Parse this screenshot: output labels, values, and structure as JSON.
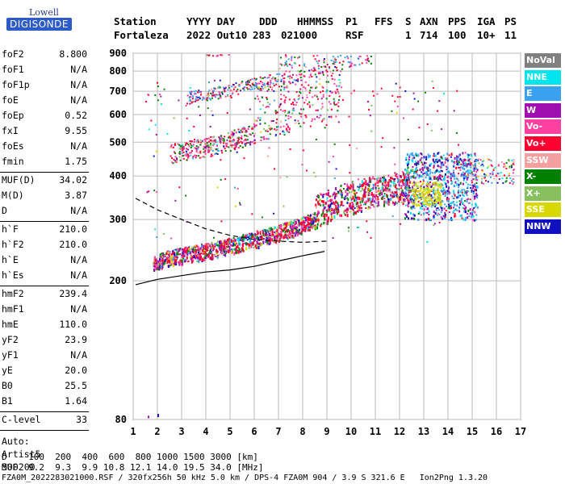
{
  "logo": {
    "top": "Lowell",
    "main": "DIGISONDE"
  },
  "header": {
    "labels": [
      "Station",
      "YYYY DAY",
      "DDD",
      "HHMMSS",
      "P1",
      "FFS",
      "S",
      "AXN",
      "PPS",
      "IGA",
      "PS"
    ],
    "values": [
      "Fortaleza",
      "2022 Out10",
      "283",
      "021000",
      "RSF",
      "1",
      "714",
      "100",
      "10+",
      "11"
    ]
  },
  "params": {
    "g1": [
      {
        "name": "foF2",
        "value": "8.800"
      },
      {
        "name": "foF1",
        "value": "N/A"
      },
      {
        "name": "foF1p",
        "value": "N/A"
      },
      {
        "name": "foE",
        "value": "N/A"
      },
      {
        "name": "foEp",
        "value": "0.52"
      },
      {
        "name": "fxI",
        "value": "9.55"
      },
      {
        "name": "foEs",
        "value": "N/A"
      },
      {
        "name": "fmin",
        "value": "1.75"
      }
    ],
    "g2": [
      {
        "name": "MUF(D)",
        "value": "34.02"
      },
      {
        "name": "M(D)",
        "value": "3.87"
      },
      {
        "name": "D",
        "value": "N/A"
      }
    ],
    "g3": [
      {
        "name": "h`F",
        "value": "210.0"
      },
      {
        "name": "h`F2",
        "value": "210.0"
      },
      {
        "name": "h`E",
        "value": "N/A"
      },
      {
        "name": "h`Es",
        "value": "N/A"
      }
    ],
    "g4": [
      {
        "name": "hmF2",
        "value": "239.4"
      },
      {
        "name": "hmF1",
        "value": "N/A"
      },
      {
        "name": "hmE",
        "value": "110.0"
      },
      {
        "name": "yF2",
        "value": "23.9"
      },
      {
        "name": "yF1",
        "value": "N/A"
      },
      {
        "name": "yE",
        "value": "20.0"
      },
      {
        "name": "B0",
        "value": "25.5"
      },
      {
        "name": "B1",
        "value": "1.64"
      }
    ],
    "clevel": {
      "name": "C-level",
      "value": "33"
    },
    "auto": [
      "Auto:",
      "Artist5",
      "500200"
    ]
  },
  "legend": [
    {
      "label": "NoVal",
      "color": "#808080"
    },
    {
      "label": "NNE",
      "color": "#00e5ee"
    },
    {
      "label": "E",
      "color": "#3aa0f0"
    },
    {
      "label": "W",
      "color": "#a010b0"
    },
    {
      "label": "Vo-",
      "color": "#ff40a0"
    },
    {
      "label": "Vo+",
      "color": "#ff0030"
    },
    {
      "label": "SSW",
      "color": "#f5a0a0"
    },
    {
      "label": "X-",
      "color": "#008000"
    },
    {
      "label": "X+",
      "color": "#88c060"
    },
    {
      "label": "SSE",
      "color": "#d8d800"
    },
    {
      "label": "NNW",
      "color": "#1010c0"
    }
  ],
  "bottom": {
    "line1": "D    100  200  400  600  800 1000 1500 3000 [km]",
    "line2": "MUF  9.2  9.3  9.9 10.8 12.1 14.0 19.5 34.0 [MHz]",
    "line3": "FZA0M_2022283021000.RSF / 320fx256h 50 kHz 5.0 km / DPS-4 FZA0M 904 / 3.9 S 321.6 E   Ion2Png 1.3.20"
  },
  "chart_data": {
    "type": "scatter",
    "xlim": [
      1,
      17
    ],
    "ylim": [
      80,
      900
    ],
    "x_ticks": [
      1,
      2,
      3,
      4,
      5,
      6,
      7,
      8,
      9,
      10,
      11,
      12,
      13,
      14,
      15,
      16,
      17
    ],
    "y_ticks": [
      80,
      200,
      300,
      400,
      500,
      600,
      700,
      800,
      900
    ],
    "y_scale": "log",
    "grid": true,
    "traces": [
      {
        "name": "O-trace 1st hop",
        "points": [
          [
            1.8,
            215
          ],
          [
            2.5,
            222
          ],
          [
            3.5,
            228
          ],
          [
            4.5,
            235
          ],
          [
            5.5,
            245
          ],
          [
            6.5,
            255
          ],
          [
            7.5,
            268
          ],
          [
            8.5,
            285
          ],
          [
            9.5,
            305
          ],
          [
            10.5,
            320
          ],
          [
            11.5,
            330
          ],
          [
            12.5,
            338
          ]
        ]
      },
      {
        "name": "2nd hop",
        "points": [
          [
            2.5,
            435
          ],
          [
            3.5,
            448
          ],
          [
            4.5,
            462
          ],
          [
            5.5,
            485
          ],
          [
            6.5,
            510
          ],
          [
            7.5,
            540
          ],
          [
            8.5,
            570
          ],
          [
            9.5,
            600
          ]
        ]
      },
      {
        "name": "3rd hop",
        "points": [
          [
            3.2,
            645
          ],
          [
            4.5,
            670
          ],
          [
            5.5,
            695
          ],
          [
            6.5,
            720
          ],
          [
            7.5,
            750
          ],
          [
            8.5,
            780
          ],
          [
            9.5,
            810
          ],
          [
            10.5,
            840
          ]
        ]
      },
      {
        "name": "4th hop",
        "points": [
          [
            4,
            880
          ],
          [
            5,
            895
          ]
        ]
      }
    ],
    "profile_curves": [
      {
        "name": "hmF2 profile",
        "points": [
          [
            1.1,
            195
          ],
          [
            2,
            202
          ],
          [
            3,
            207
          ],
          [
            4,
            212
          ],
          [
            5,
            215
          ],
          [
            6,
            220
          ],
          [
            7,
            228
          ],
          [
            8,
            236
          ],
          [
            8.9,
            243
          ]
        ]
      },
      {
        "name": "dashed profile",
        "points": [
          [
            1.1,
            345
          ],
          [
            2,
            320
          ],
          [
            3,
            300
          ],
          [
            4,
            282
          ],
          [
            5,
            270
          ],
          [
            6,
            263
          ],
          [
            7,
            260
          ],
          [
            8,
            258
          ],
          [
            9,
            260
          ]
        ]
      }
    ]
  }
}
